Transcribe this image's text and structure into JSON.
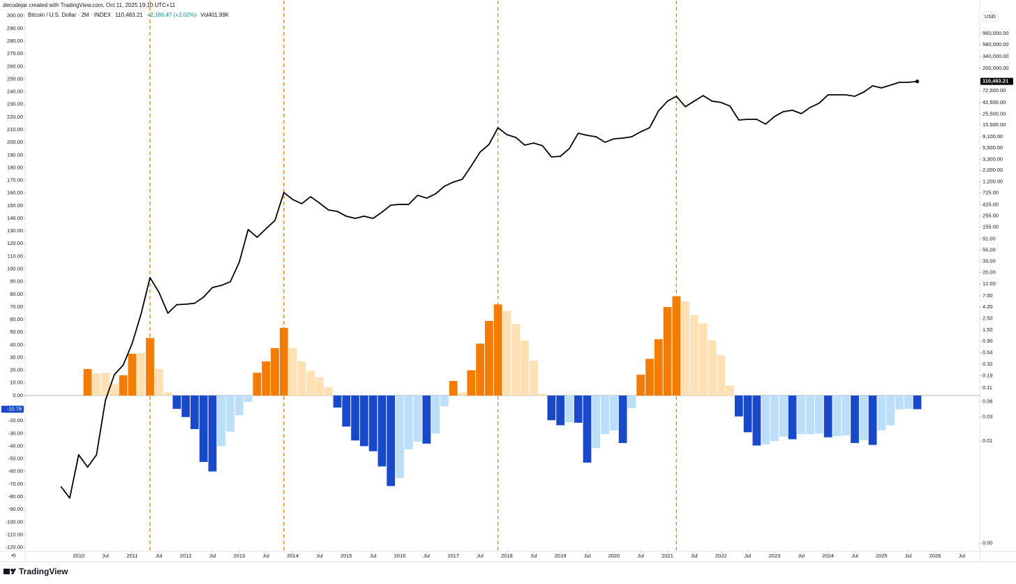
{
  "chart_data": {
    "type": "combo",
    "credit": "decodejar created with TradingView.com, Oct 11, 2025 19:10 UTC+11",
    "title": "Bitcoin / U.S. Dollar · 2M · INDEX",
    "change": "+2,186.47 (+2.02%)",
    "volume": "Vol401.99K",
    "y2_unit": "USD",
    "brand": "TradingView",
    "xlim": [
      "2009-01",
      "2026-11"
    ],
    "ylim": [
      -123,
      312
    ],
    "y2lim": [
      7e-05,
      4200000
    ],
    "y2log": true,
    "grid": false,
    "markers": [
      "2011-05",
      "2013-11",
      "2017-11",
      "2021-03"
    ],
    "marker_color": "#f57c00",
    "xticks": [
      {
        "value": "2010-01",
        "label": "2010"
      },
      {
        "value": "2010-07",
        "label": "Jul"
      },
      {
        "value": "2011-01",
        "label": "2011"
      },
      {
        "value": "2011-07",
        "label": "Jul"
      },
      {
        "value": "2012-01",
        "label": "2012"
      },
      {
        "value": "2012-07",
        "label": "Jul"
      },
      {
        "value": "2013-01",
        "label": "2013"
      },
      {
        "value": "2013-07",
        "label": "Jul"
      },
      {
        "value": "2014-01",
        "label": "2014"
      },
      {
        "value": "2014-07",
        "label": "Jul"
      },
      {
        "value": "2015-01",
        "label": "2015"
      },
      {
        "value": "2015-07",
        "label": "Jul"
      },
      {
        "value": "2016-01",
        "label": "2016"
      },
      {
        "value": "2016-07",
        "label": "Jul"
      },
      {
        "value": "2017-01",
        "label": "2017"
      },
      {
        "value": "2017-07",
        "label": "Jul"
      },
      {
        "value": "2018-01",
        "label": "2018"
      },
      {
        "value": "2018-07",
        "label": "Jul"
      },
      {
        "value": "2019-01",
        "label": "2019"
      },
      {
        "value": "2019-07",
        "label": "Jul"
      },
      {
        "value": "2020-01",
        "label": "2020"
      },
      {
        "value": "2020-07",
        "label": "Jul"
      },
      {
        "value": "2021-01",
        "label": "2021"
      },
      {
        "value": "2021-07",
        "label": "Jul"
      },
      {
        "value": "2022-01",
        "label": "2022"
      },
      {
        "value": "2022-07",
        "label": "Jul"
      },
      {
        "value": "2023-01",
        "label": "2023"
      },
      {
        "value": "2023-07",
        "label": "Jul"
      },
      {
        "value": "2024-01",
        "label": "2024"
      },
      {
        "value": "2024-07",
        "label": "Jul"
      },
      {
        "value": "2025-01",
        "label": "2025"
      },
      {
        "value": "2025-07",
        "label": "Jul"
      },
      {
        "value": "2026-01",
        "label": "2026"
      },
      {
        "value": "2026-07",
        "label": "Jul"
      }
    ],
    "yticks": [
      {
        "value": 300,
        "label": "300.00"
      },
      {
        "value": 290,
        "label": "290.00"
      },
      {
        "value": 280,
        "label": "280.00"
      },
      {
        "value": 270,
        "label": "270.00"
      },
      {
        "value": 260,
        "label": "260.00"
      },
      {
        "value": 250,
        "label": "250.00"
      },
      {
        "value": 240,
        "label": "240.00"
      },
      {
        "value": 230,
        "label": "230.00"
      },
      {
        "value": 220,
        "label": "220.00"
      },
      {
        "value": 210,
        "label": "210.00"
      },
      {
        "value": 200,
        "label": "200.00"
      },
      {
        "value": 190,
        "label": "190.00"
      },
      {
        "value": 180,
        "label": "180.00"
      },
      {
        "value": 170,
        "label": "170.00"
      },
      {
        "value": 160,
        "label": "160.00"
      },
      {
        "value": 150,
        "label": "150.00"
      },
      {
        "value": 140,
        "label": "140.00"
      },
      {
        "value": 130,
        "label": "130.00"
      },
      {
        "value": 120,
        "label": "120.00"
      },
      {
        "value": 110,
        "label": "110.00"
      },
      {
        "value": 100,
        "label": "100.00"
      },
      {
        "value": 90,
        "label": "90.00"
      },
      {
        "value": 80,
        "label": "80.00"
      },
      {
        "value": 70,
        "label": "70.00"
      },
      {
        "value": 60,
        "label": "60.00"
      },
      {
        "value": 50,
        "label": "50.00"
      },
      {
        "value": 40,
        "label": "40.00"
      },
      {
        "value": 30,
        "label": "30.00"
      },
      {
        "value": 20,
        "label": "20.00"
      },
      {
        "value": 10,
        "label": "10.00"
      },
      {
        "value": 0,
        "label": "0.00"
      },
      {
        "value": -10,
        "label": "-10.00"
      },
      {
        "value": -20,
        "label": "-20.00"
      },
      {
        "value": -30,
        "label": "-30.00"
      },
      {
        "value": -40,
        "label": "-40.00"
      },
      {
        "value": -50,
        "label": "-50.00"
      },
      {
        "value": -60,
        "label": "-60.00"
      },
      {
        "value": -70,
        "label": "-70.00"
      },
      {
        "value": -80,
        "label": "-80.00"
      },
      {
        "value": -90,
        "label": "-90.00"
      },
      {
        "value": -100,
        "label": "-100.00"
      },
      {
        "value": -110,
        "label": "-110.00"
      },
      {
        "value": -120,
        "label": "-120.00"
      }
    ],
    "y2ticks": [
      {
        "value": 960000,
        "label": "960,000.00"
      },
      {
        "value": 580000,
        "label": "580,000.00"
      },
      {
        "value": 340000,
        "label": "340,000.00"
      },
      {
        "value": 200000,
        "label": "200,000.00"
      },
      {
        "value": 72500,
        "label": "72,500.00"
      },
      {
        "value": 42500,
        "label": "42,500.00"
      },
      {
        "value": 25500,
        "label": "25,500.00"
      },
      {
        "value": 15500,
        "label": "15,500.00"
      },
      {
        "value": 9100,
        "label": "9,100.00"
      },
      {
        "value": 5500,
        "label": "5,500.00"
      },
      {
        "value": 3300,
        "label": "3,300.00"
      },
      {
        "value": 2000,
        "label": "2,000.00"
      },
      {
        "value": 1200,
        "label": "1,200.00"
      },
      {
        "value": 725,
        "label": "725.00"
      },
      {
        "value": 425,
        "label": "425.00"
      },
      {
        "value": 255,
        "label": "255.00"
      },
      {
        "value": 155,
        "label": "155.00"
      },
      {
        "value": 91,
        "label": "91.00"
      },
      {
        "value": 55,
        "label": "55.00"
      },
      {
        "value": 33,
        "label": "33.00"
      },
      {
        "value": 20,
        "label": "20.00"
      },
      {
        "value": 12,
        "label": "12.00"
      },
      {
        "value": 7,
        "label": "7.00"
      },
      {
        "value": 4.2,
        "label": "4.20"
      },
      {
        "value": 2.5,
        "label": "2.50"
      },
      {
        "value": 1.5,
        "label": "1.50"
      },
      {
        "value": 0.9,
        "label": "0.90"
      },
      {
        "value": 0.54,
        "label": "0.54"
      },
      {
        "value": 0.32,
        "label": "0.32"
      },
      {
        "value": 0.19,
        "label": "0.19"
      },
      {
        "value": 0.11,
        "label": "0.11"
      },
      {
        "value": 0.06,
        "label": "0.06"
      },
      {
        "value": 0.03,
        "label": "0.03"
      },
      {
        "value": 0.01,
        "label": "0.01"
      },
      {
        "value": 0.0001,
        "label": "0.00"
      }
    ],
    "series": [
      {
        "type": "bar",
        "x": [
          "2010-03",
          "2010-05",
          "2010-07",
          "2010-09",
          "2010-11",
          "2011-01",
          "2011-03",
          "2011-05",
          "2011-07",
          "2011-09",
          "2011-11",
          "2012-01",
          "2012-03",
          "2012-05",
          "2012-07",
          "2012-09",
          "2012-11",
          "2013-01",
          "2013-03",
          "2013-05",
          "2013-07",
          "2013-09",
          "2013-11",
          "2014-01",
          "2014-03",
          "2014-05",
          "2014-07",
          "2014-09",
          "2014-11",
          "2015-01",
          "2015-03",
          "2015-05",
          "2015-07",
          "2015-09",
          "2015-11",
          "2016-01",
          "2016-03",
          "2016-05",
          "2016-07",
          "2016-09",
          "2016-11",
          "2017-01",
          "2017-03",
          "2017-05",
          "2017-07",
          "2017-09",
          "2017-11",
          "2018-01",
          "2018-03",
          "2018-05",
          "2018-07",
          "2018-09",
          "2018-11",
          "2019-01",
          "2019-03",
          "2019-05",
          "2019-07",
          "2019-09",
          "2019-11",
          "2020-01",
          "2020-03",
          "2020-05",
          "2020-07",
          "2020-09",
          "2020-11",
          "2021-01",
          "2021-03",
          "2021-05",
          "2021-07",
          "2021-09",
          "2021-11",
          "2022-01",
          "2022-03",
          "2022-05",
          "2022-07",
          "2022-09",
          "2022-11",
          "2023-01",
          "2023-03",
          "2023-05",
          "2023-07",
          "2023-09",
          "2023-11",
          "2024-01",
          "2024-03",
          "2024-05",
          "2024-07",
          "2024-09",
          "2024-11",
          "2025-01",
          "2025-03",
          "2025-05",
          "2025-07",
          "2025-09"
        ],
        "values": [
          21,
          17.5,
          18,
          9,
          16,
          33,
          33.5,
          45.5,
          21,
          2.5,
          -10.5,
          -17,
          -26.5,
          -52.5,
          -60,
          -40,
          -28.5,
          -15.5,
          -5,
          18,
          27,
          37.5,
          53.5,
          37.5,
          27,
          19.5,
          14.5,
          6.5,
          -9.5,
          -24.5,
          -35.5,
          -40,
          -44,
          -56,
          -71.5,
          -65,
          -42.5,
          -36.5,
          -38,
          -30,
          -8.5,
          11.5,
          2.5,
          20,
          41,
          59,
          72,
          67,
          56.5,
          43.5,
          27.5,
          1.5,
          -19.5,
          -23.5,
          -21,
          -21.5,
          -53,
          -41.5,
          -30.5,
          -27.5,
          -37.5,
          -10,
          16.5,
          29,
          44.5,
          70,
          78.5,
          74.5,
          63.5,
          57,
          43.5,
          32,
          8,
          -16.5,
          -29,
          -39.5,
          -38.5,
          -36,
          -32.5,
          -34.5,
          -30.5,
          -30.5,
          -30,
          -33,
          -32,
          -31.5,
          -37.5,
          -35,
          -39,
          -27.5,
          -23.5,
          -11,
          -10.5,
          -10.78
        ],
        "colors": [
          "#f57c00",
          "#ffe0b2",
          "#ffe0b2",
          "#ffe0b2",
          "#f57c00",
          "#f57c00",
          "#ffe0b2",
          "#f57c00",
          "#ffe0b2",
          "#ffe0b2",
          "#1848cc",
          "#1848cc",
          "#1848cc",
          "#1848cc",
          "#1848cc",
          "#bbdefb",
          "#bbdefb",
          "#bbdefb",
          "#bbdefb",
          "#f57c00",
          "#f57c00",
          "#f57c00",
          "#f57c00",
          "#ffe0b2",
          "#ffe0b2",
          "#ffe0b2",
          "#ffe0b2",
          "#ffe0b2",
          "#1848cc",
          "#1848cc",
          "#1848cc",
          "#1848cc",
          "#1848cc",
          "#1848cc",
          "#1848cc",
          "#bbdefb",
          "#bbdefb",
          "#bbdefb",
          "#1848cc",
          "#bbdefb",
          "#bbdefb",
          "#f57c00",
          "#ffe0b2",
          "#f57c00",
          "#f57c00",
          "#f57c00",
          "#f57c00",
          "#ffe0b2",
          "#ffe0b2",
          "#ffe0b2",
          "#ffe0b2",
          "#ffe0b2",
          "#1848cc",
          "#1848cc",
          "#bbdefb",
          "#1848cc",
          "#1848cc",
          "#bbdefb",
          "#bbdefb",
          "#bbdefb",
          "#1848cc",
          "#bbdefb",
          "#f57c00",
          "#f57c00",
          "#f57c00",
          "#f57c00",
          "#f57c00",
          "#ffe0b2",
          "#ffe0b2",
          "#ffe0b2",
          "#ffe0b2",
          "#ffe0b2",
          "#ffe0b2",
          "#1848cc",
          "#1848cc",
          "#1848cc",
          "#bbdefb",
          "#bbdefb",
          "#bbdefb",
          "#1848cc",
          "#bbdefb",
          "#bbdefb",
          "#bbdefb",
          "#1848cc",
          "#bbdefb",
          "#bbdefb",
          "#1848cc",
          "#bbdefb",
          "#1848cc",
          "#bbdefb",
          "#bbdefb",
          "#bbdefb",
          "#bbdefb",
          "#1848cc"
        ]
      },
      {
        "type": "line",
        "axis": "y2",
        "color": "#000000",
        "x": [
          "2009-09",
          "2009-11",
          "2010-01",
          "2010-03",
          "2010-05",
          "2010-07",
          "2010-09",
          "2010-11",
          "2011-01",
          "2011-03",
          "2011-05",
          "2011-07",
          "2011-09",
          "2011-11",
          "2012-01",
          "2012-03",
          "2012-05",
          "2012-07",
          "2012-09",
          "2012-11",
          "2013-01",
          "2013-03",
          "2013-05",
          "2013-07",
          "2013-09",
          "2013-11",
          "2014-01",
          "2014-03",
          "2014-05",
          "2014-07",
          "2014-09",
          "2014-11",
          "2015-01",
          "2015-03",
          "2015-05",
          "2015-07",
          "2015-09",
          "2015-11",
          "2016-01",
          "2016-03",
          "2016-05",
          "2016-07",
          "2016-09",
          "2016-11",
          "2017-01",
          "2017-03",
          "2017-05",
          "2017-07",
          "2017-09",
          "2017-11",
          "2018-01",
          "2018-03",
          "2018-05",
          "2018-07",
          "2018-09",
          "2018-11",
          "2019-01",
          "2019-03",
          "2019-05",
          "2019-07",
          "2019-09",
          "2019-11",
          "2020-01",
          "2020-03",
          "2020-05",
          "2020-07",
          "2020-09",
          "2020-11",
          "2021-01",
          "2021-03",
          "2021-05",
          "2021-07",
          "2021-09",
          "2021-11",
          "2022-01",
          "2022-03",
          "2022-05",
          "2022-07",
          "2022-09",
          "2022-11",
          "2023-01",
          "2023-03",
          "2023-05",
          "2023-07",
          "2023-09",
          "2023-11",
          "2024-01",
          "2024-03",
          "2024-05",
          "2024-07",
          "2024-09",
          "2024-11",
          "2025-01",
          "2025-03",
          "2025-05",
          "2025-07",
          "2025-09"
        ],
        "values": [
          0.0013,
          0.00077,
          0.0054,
          0.0031,
          0.0054,
          0.063,
          0.2,
          0.31,
          0.82,
          3.1,
          15.9,
          8.2,
          3.2,
          4.7,
          4.8,
          5,
          6.6,
          10.2,
          11.2,
          13.2,
          31.7,
          139,
          98,
          144,
          209,
          736,
          538,
          446,
          610,
          459,
          336,
          315,
          253,
          230,
          253,
          230,
          305,
          418,
          432,
          432,
          650,
          573,
          692,
          977,
          1180,
          1340,
          2430,
          4570,
          6460,
          13700,
          10000,
          8830,
          6250,
          6870,
          6070,
          3660,
          3780,
          5350,
          10700,
          9700,
          9120,
          7100,
          8300,
          8570,
          9120,
          11400,
          13700,
          29200,
          45400,
          56500,
          35300,
          45400,
          58300,
          45400,
          42700,
          36400,
          19400,
          20000,
          20000,
          16100,
          22700,
          28300,
          30100,
          25800,
          34200,
          41300,
          60300,
          60300,
          60300,
          56500,
          68200,
          90600,
          82400,
          93500,
          106000,
          106000,
          110483.21
        ],
        "value_labels": [
          null,
          null,
          null,
          null,
          null,
          null,
          null,
          null,
          null,
          null,
          null,
          null,
          null,
          null,
          null,
          null,
          null,
          null,
          null,
          null,
          null,
          null,
          null,
          null,
          null,
          null,
          null,
          null,
          null,
          null,
          null,
          null,
          null,
          null,
          null,
          null,
          null,
          null,
          null,
          null,
          null,
          null,
          null,
          null,
          null,
          null,
          null,
          null,
          null,
          null,
          null,
          null,
          null,
          null,
          null,
          null,
          null,
          null,
          null,
          null,
          null,
          null,
          null,
          null,
          null,
          null,
          null,
          null,
          null,
          null,
          null,
          null,
          null,
          null,
          null,
          null,
          null,
          null,
          null,
          null,
          null,
          null,
          null,
          null,
          null,
          null,
          null,
          null,
          null,
          null,
          null,
          null,
          null,
          null,
          null,
          null,
          "110,483.21"
        ]
      }
    ]
  }
}
